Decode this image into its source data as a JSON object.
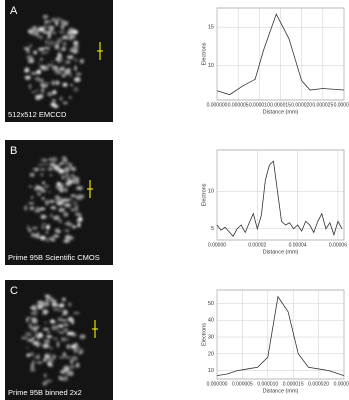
{
  "panels": [
    {
      "label": "A",
      "caption": "512x512 EMCCD"
    },
    {
      "label": "B",
      "caption": "Prime 95B Scientific CMOS"
    },
    {
      "label": "C",
      "caption": "Prime 95B binned 2x2"
    }
  ],
  "chart_data": [
    {
      "type": "line",
      "xlabel": "Distance (mm)",
      "ylabel": "Electrons",
      "color": "#333333",
      "grid": true,
      "x": [
        0,
        3e-06,
        6e-06,
        9e-06,
        1.1e-05,
        1.4e-05,
        1.7e-05,
        2e-05,
        2.2e-05,
        2.5e-05,
        3e-05
      ],
      "values": [
        6.7,
        6.2,
        7.3,
        8.2,
        12,
        16.7,
        13.5,
        8,
        6.8,
        7,
        6.8
      ],
      "xlim": [
        0,
        3e-05
      ],
      "ylim": [
        5.5,
        17.5
      ],
      "xticks": [
        {
          "value": 0,
          "label": "0.000000"
        },
        {
          "value": 5e-06,
          "label": "0.000005"
        },
        {
          "value": 1e-05,
          "label": "0.000010"
        },
        {
          "value": 1.5e-05,
          "label": "0.000015"
        },
        {
          "value": 2e-05,
          "label": "0.000020"
        },
        {
          "value": 2.5e-05,
          "label": "0.000025"
        },
        {
          "value": 3e-05,
          "label": "0.000030"
        }
      ],
      "yticks": [
        10,
        15
      ]
    },
    {
      "type": "line",
      "xlabel": "Distance (mm)",
      "ylabel": "Electrons",
      "color": "#333333",
      "grid": true,
      "x": [
        0,
        2e-06,
        4e-06,
        6e-06,
        8e-06,
        1e-05,
        1.2e-05,
        1.4e-05,
        1.6e-05,
        1.8e-05,
        2e-05,
        2.2e-05,
        2.4e-05,
        2.6e-05,
        2.8e-05,
        3e-05,
        3.2e-05,
        3.4e-05,
        3.6e-05,
        3.8e-05,
        4e-05,
        4.2e-05,
        4.4e-05,
        4.6e-05,
        4.8e-05,
        5e-05,
        5.2e-05,
        5.4e-05,
        5.6e-05,
        5.8e-05,
        6e-05,
        6.2e-05
      ],
      "values": [
        5.5,
        4.8,
        5.2,
        4.6,
        4.0,
        5.0,
        5.5,
        4.5,
        5.8,
        7.0,
        5.0,
        6.8,
        11.5,
        13.5,
        14.0,
        10,
        6,
        5.5,
        5.8,
        5,
        5.5,
        4.7,
        6,
        5.5,
        4.5,
        6,
        7,
        5,
        5.8,
        4.2,
        6,
        5
      ],
      "xlim": [
        0,
        6.3e-05
      ],
      "ylim": [
        3.5,
        15.5
      ],
      "xticks": [
        {
          "value": 0,
          "label": "0.00000"
        },
        {
          "value": 2e-05,
          "label": "0.00002"
        },
        {
          "value": 4e-05,
          "label": "0.00004"
        },
        {
          "value": 6e-05,
          "label": "0.00006"
        }
      ],
      "yticks": [
        5,
        10
      ]
    },
    {
      "type": "line",
      "xlabel": "Distance (mm)",
      "ylabel": "Electrons",
      "color": "#333333",
      "grid": true,
      "x": [
        0,
        2e-06,
        4e-06,
        6e-06,
        8e-06,
        1e-05,
        1.2e-05,
        1.4e-05,
        1.6e-05,
        1.8e-05,
        2e-05,
        2.2e-05,
        2.5e-05
      ],
      "values": [
        7,
        8,
        10,
        11,
        12,
        18,
        54,
        45,
        20,
        12,
        11,
        10,
        7
      ],
      "xlim": [
        0,
        2.5e-05
      ],
      "ylim": [
        5,
        58
      ],
      "xticks": [
        {
          "value": 0,
          "label": "0.000000"
        },
        {
          "value": 5e-06,
          "label": "0.000005"
        },
        {
          "value": 1e-05,
          "label": "0.000010"
        },
        {
          "value": 1.5e-05,
          "label": "0.000015"
        },
        {
          "value": 2e-05,
          "label": "0.000020"
        },
        {
          "value": 2.5e-05,
          "label": "0.000025"
        }
      ],
      "yticks": [
        10,
        20,
        30,
        40,
        50
      ]
    }
  ]
}
